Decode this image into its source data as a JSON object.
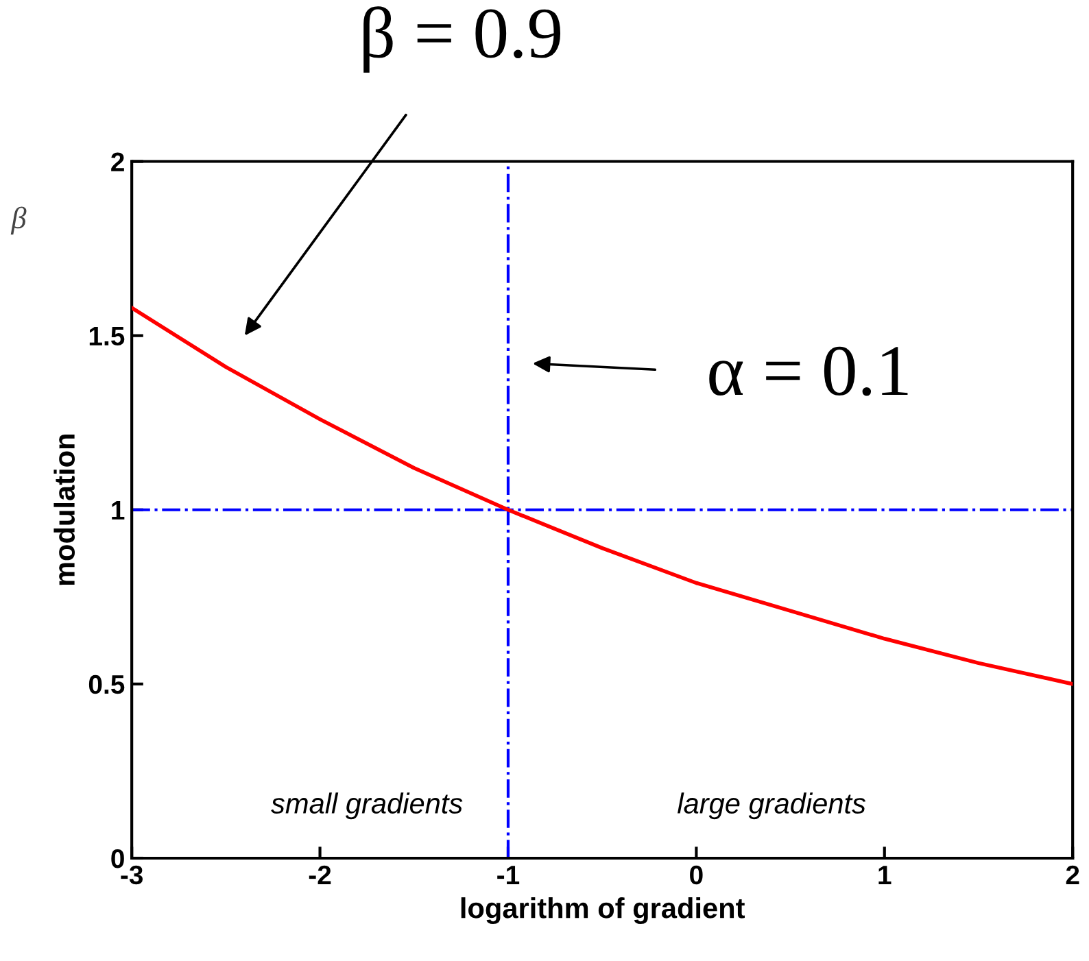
{
  "chart_data": {
    "type": "line",
    "xlabel": "logarithm of gradient",
    "ylabel": "modulation",
    "x": [
      -3,
      -2.5,
      -2,
      -1.5,
      -1,
      -0.5,
      0,
      0.5,
      1,
      1.5,
      2
    ],
    "series": [
      {
        "color": "#ff0000",
        "values": [
          1.58,
          1.41,
          1.26,
          1.12,
          1.0,
          0.89,
          0.79,
          0.71,
          0.63,
          0.56,
          0.5
        ]
      }
    ],
    "xlim": [
      -3,
      2
    ],
    "ylim": [
      0,
      2
    ],
    "xticks": [
      -3,
      -2,
      -1,
      0,
      1,
      2
    ],
    "yticks": [
      0,
      0.5,
      1,
      1.5,
      2
    ],
    "ref_lines": [
      {
        "axis": "x",
        "value": -1,
        "color": "#0000ff",
        "line_style": "dashdot"
      },
      {
        "axis": "y",
        "value": 1,
        "color": "#0000ff",
        "line_style": "dashdot"
      }
    ],
    "annotations": [
      "β = 0.9",
      "α = 0.1",
      "β",
      "small gradients",
      "large gradients"
    ],
    "grid": false,
    "legend": false,
    "marker": "none",
    "line_style": "solid"
  }
}
